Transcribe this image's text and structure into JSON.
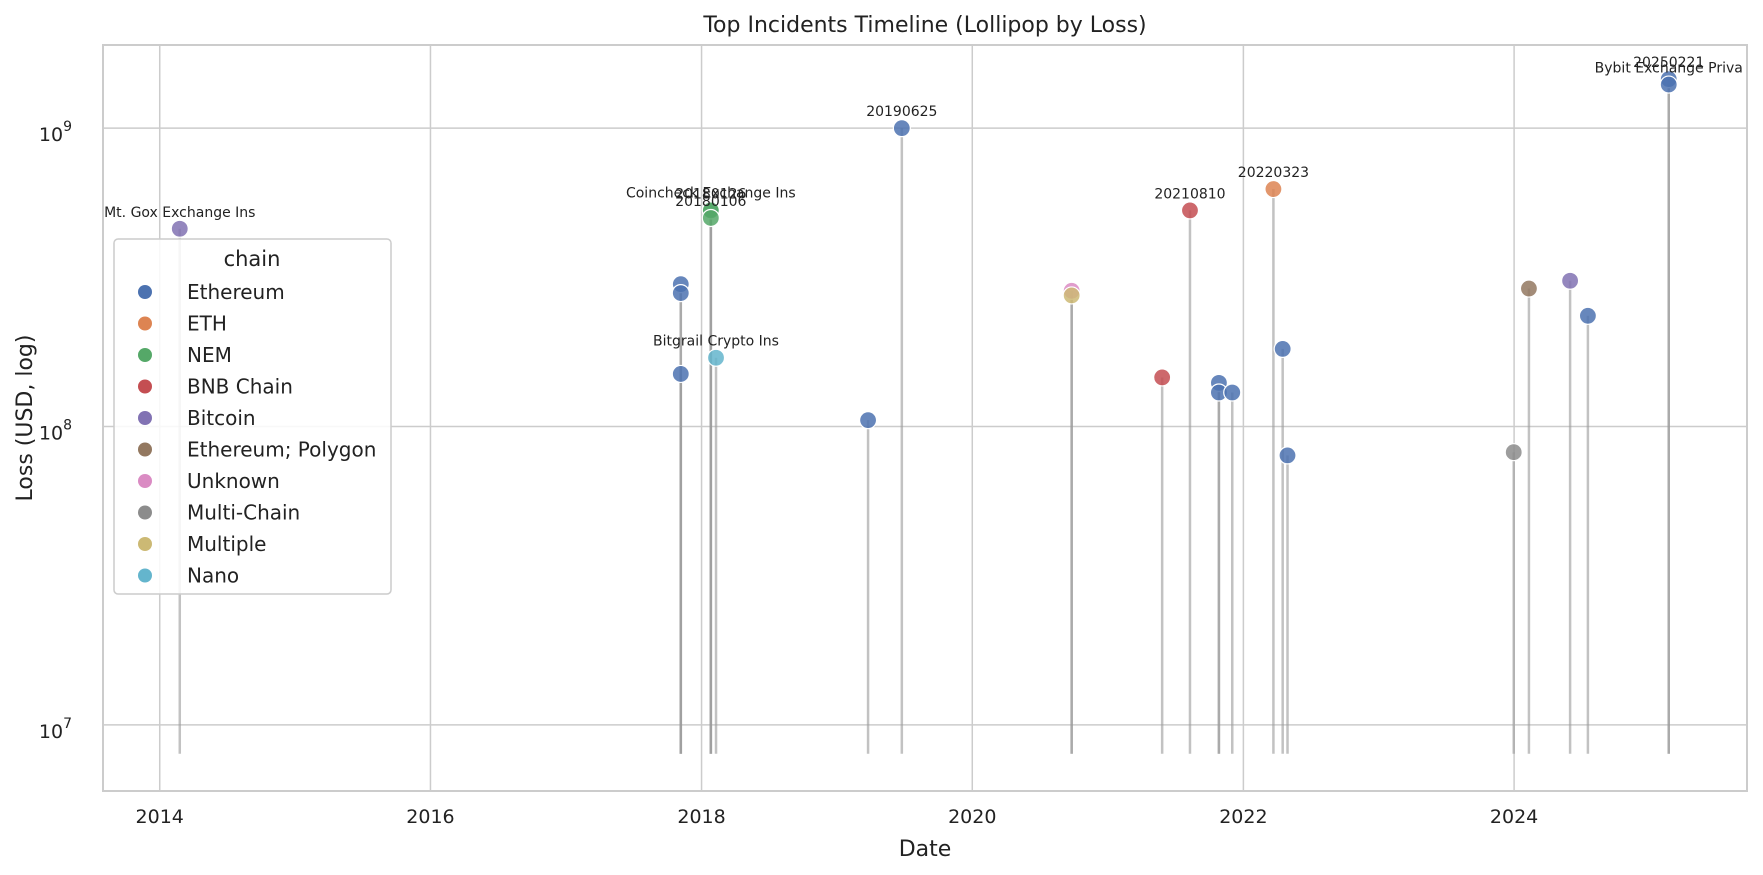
{
  "chart_data": {
    "type": "scatter",
    "title": "Top Incidents Timeline (Lollipop by Loss)",
    "xlabel": "Date",
    "ylabel": "Loss (USD, log)",
    "xlim": [
      "2013-08-01",
      "2025-09-20"
    ],
    "ylim": [
      6000000,
      1900000000
    ],
    "yscale": "log",
    "stem_base": 8000000,
    "x_ticks": [
      "2014",
      "2016",
      "2018",
      "2020",
      "2022",
      "2024"
    ],
    "y_ticks": [
      {
        "value": 10000000,
        "base": "10",
        "exp": "7"
      },
      {
        "value": 100000000,
        "base": "10",
        "exp": "8"
      },
      {
        "value": 1000000000,
        "base": "10",
        "exp": "9"
      }
    ],
    "grid": true,
    "legend": {
      "title": "chain",
      "position": "center-left",
      "entries": [
        {
          "name": "Ethereum",
          "color": "#4c72b0"
        },
        {
          "name": "ETH",
          "color": "#dd8452"
        },
        {
          "name": "NEM",
          "color": "#55a868"
        },
        {
          "name": "BNB Chain",
          "color": "#c44e52"
        },
        {
          "name": "Bitcoin",
          "color": "#8172b3"
        },
        {
          "name": "Ethereum; Polygon",
          "color": "#937860"
        },
        {
          "name": "Unknown",
          "color": "#da8bc3"
        },
        {
          "name": "Multi-Chain",
          "color": "#8c8c8c"
        },
        {
          "name": "Multiple",
          "color": "#ccb974"
        },
        {
          "name": "Nano",
          "color": "#64b5cd"
        }
      ]
    },
    "points": [
      {
        "date": "2014-02-24",
        "loss": 460000000,
        "chain": "Bitcoin",
        "label": "Mt. Gox Exchange Ins"
      },
      {
        "date": "2017-11-06",
        "loss": 300000000,
        "chain": "Ethereum",
        "label": ""
      },
      {
        "date": "2017-11-06",
        "loss": 280000000,
        "chain": "Ethereum",
        "label": ""
      },
      {
        "date": "2017-11-06",
        "loss": 150000000,
        "chain": "Ethereum",
        "label": ""
      },
      {
        "date": "2018-01-26",
        "loss": 534000000,
        "chain": "NEM",
        "label": "Coincheck Exchange Ins"
      },
      {
        "date": "2018-01-26",
        "loss": 530000000,
        "chain": "NEM",
        "label": "20180126"
      },
      {
        "date": "2018-01-26",
        "loss": 500000000,
        "chain": "NEM",
        "label": "20180106"
      },
      {
        "date": "2018-02-09",
        "loss": 170000000,
        "chain": "Nano",
        "label": "Bitgrail Crypto Ins"
      },
      {
        "date": "2019-03-26",
        "loss": 105000000,
        "chain": "Ethereum",
        "label": ""
      },
      {
        "date": "2019-06-25",
        "loss": 1000000000,
        "chain": "Ethereum",
        "label": "20190625"
      },
      {
        "date": "2020-09-25",
        "loss": 285000000,
        "chain": "Unknown",
        "label": ""
      },
      {
        "date": "2020-09-25",
        "loss": 275000000,
        "chain": "Multiple",
        "label": ""
      },
      {
        "date": "2021-05-27",
        "loss": 146000000,
        "chain": "BNB Chain",
        "label": ""
      },
      {
        "date": "2021-08-10",
        "loss": 530000000,
        "chain": "BNB Chain",
        "label": "20210810"
      },
      {
        "date": "2021-10-27",
        "loss": 140000000,
        "chain": "Ethereum",
        "label": ""
      },
      {
        "date": "2021-10-27",
        "loss": 130000000,
        "chain": "Ethereum",
        "label": ""
      },
      {
        "date": "2021-12-02",
        "loss": 130000000,
        "chain": "Ethereum",
        "label": ""
      },
      {
        "date": "2022-03-23",
        "loss": 625000000,
        "chain": "ETH",
        "label": "20220323"
      },
      {
        "date": "2022-04-17",
        "loss": 182000000,
        "chain": "Ethereum",
        "label": ""
      },
      {
        "date": "2022-04-30",
        "loss": 80000000,
        "chain": "Ethereum",
        "label": ""
      },
      {
        "date": "2023-12-31",
        "loss": 82000000,
        "chain": "Multi-Chain",
        "label": ""
      },
      {
        "date": "2024-02-10",
        "loss": 290000000,
        "chain": "Ethereum; Polygon",
        "label": ""
      },
      {
        "date": "2024-05-31",
        "loss": 308000000,
        "chain": "Bitcoin",
        "label": ""
      },
      {
        "date": "2024-07-18",
        "loss": 235000000,
        "chain": "Ethereum",
        "label": ""
      },
      {
        "date": "2025-02-21",
        "loss": 1460000000,
        "chain": "Ethereum",
        "label": "20250221"
      },
      {
        "date": "2025-02-21",
        "loss": 1400000000,
        "chain": "Ethereum",
        "label": "Bybit Exchange Priva"
      }
    ]
  }
}
